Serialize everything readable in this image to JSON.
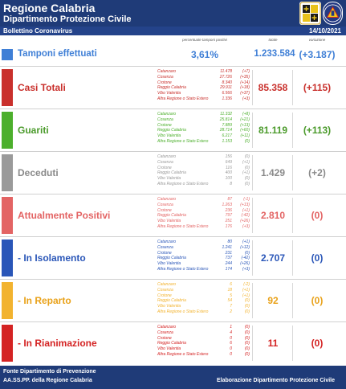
{
  "header": {
    "title": "Regione Calabria",
    "subtitle": "Dipartimento Protezione Civile"
  },
  "subheader": {
    "left": "Bollettino Coronavirus",
    "date": "14/10/2021"
  },
  "columns": {
    "perc": "percentuale tamponi positivi",
    "total": "totale",
    "delta": "variazione"
  },
  "tamponi": {
    "label": "Tamponi effettuati",
    "perc": "3,61%",
    "total": "1.233.584",
    "delta": "(+3.187)",
    "color": "#3f7fd6"
  },
  "sections": [
    {
      "key": "casi",
      "label": "Casi Totali",
      "color": "#c9302c",
      "total": "85.358",
      "delta": "(+115)",
      "rows": [
        {
          "name": "Catanzaro",
          "value": "11.478",
          "delta": "(+7)"
        },
        {
          "name": "Cosenza",
          "value": "27.726",
          "delta": "(+35)"
        },
        {
          "name": "Crotone",
          "value": "8.340",
          "delta": "(+14)"
        },
        {
          "name": "Reggio Calabria",
          "value": "29.911",
          "delta": "(+18)"
        },
        {
          "name": "Vibo Valentia",
          "value": "6.566",
          "delta": "(+37)"
        },
        {
          "name": "Altra Regione o Stato Estero",
          "value": "1.336",
          "delta": "(+3)"
        }
      ]
    },
    {
      "key": "guariti",
      "label": "Guariti",
      "color": "#4caf2c",
      "total": "81.119",
      "delta": "(+113)",
      "rows": [
        {
          "name": "Catanzaro",
          "value": "11.332",
          "delta": "(+8)"
        },
        {
          "name": "Cosenza",
          "value": "25.814",
          "delta": "(+21)"
        },
        {
          "name": "Crotone",
          "value": "7.889",
          "delta": "(+13)"
        },
        {
          "name": "Reggio Calabria",
          "value": "28.714",
          "delta": "(+60)"
        },
        {
          "name": "Vibo Valentia",
          "value": "6.217",
          "delta": "(+11)"
        },
        {
          "name": "Altra Regione o Stato Estero",
          "value": "1.153",
          "delta": "(0)"
        }
      ]
    },
    {
      "key": "deceduti",
      "label": "Deceduti",
      "color": "#9a9a9a",
      "total": "1.429",
      "delta": "(+2)",
      "rows": [
        {
          "name": "Catanzaro",
          "value": "156",
          "delta": "(0)"
        },
        {
          "name": "Cosenza",
          "value": "649",
          "delta": "(+1)"
        },
        {
          "name": "Crotone",
          "value": "116",
          "delta": "(0)"
        },
        {
          "name": "Reggio Calabria",
          "value": "400",
          "delta": "(+1)"
        },
        {
          "name": "Vibo Valentia",
          "value": "100",
          "delta": "(0)"
        },
        {
          "name": "Altra Regione o Stato Estero",
          "value": "8",
          "delta": "(0)"
        }
      ]
    },
    {
      "key": "positivi",
      "label": "Attualmente Positivi",
      "color": "#e36464",
      "total": "2.810",
      "delta": "(0)",
      "rows": [
        {
          "name": "Catanzaro",
          "value": "87",
          "delta": "(-1)"
        },
        {
          "name": "Cosenza",
          "value": "1.263",
          "delta": "(+13)"
        },
        {
          "name": "Crotone",
          "value": "236",
          "delta": "(+1)"
        },
        {
          "name": "Reggio Calabria",
          "value": "797",
          "delta": "(-42)"
        },
        {
          "name": "Vibo Valentia",
          "value": "251",
          "delta": "(+26)"
        },
        {
          "name": "Altra Regione o Stato Estero",
          "value": "176",
          "delta": "(+3)"
        }
      ]
    },
    {
      "key": "isolamento",
      "label": "- In Isolamento",
      "color": "#2a56b8",
      "total": "2.707",
      "delta": "(0)",
      "rows": [
        {
          "name": "Catanzaro",
          "value": "80",
          "delta": "(+1)"
        },
        {
          "name": "Cosenza",
          "value": "1.241",
          "delta": "(+12)"
        },
        {
          "name": "Crotone",
          "value": "231",
          "delta": "(0)"
        },
        {
          "name": "Reggio Calabria",
          "value": "737",
          "delta": "(-42)"
        },
        {
          "name": "Vibo Valentia",
          "value": "244",
          "delta": "(+26)"
        },
        {
          "name": "Altra Regione o Stato Estero",
          "value": "174",
          "delta": "(+3)"
        }
      ]
    },
    {
      "key": "reparto",
      "label": "- In Reparto",
      "color": "#f2b32f",
      "total": "92",
      "delta": "(0)",
      "rows": [
        {
          "name": "Catanzaro",
          "value": "6",
          "delta": "(-2)"
        },
        {
          "name": "Cosenza",
          "value": "18",
          "delta": "(+1)"
        },
        {
          "name": "Crotone",
          "value": "5",
          "delta": "(+1)"
        },
        {
          "name": "Reggio Calabria",
          "value": "54",
          "delta": "(0)"
        },
        {
          "name": "Vibo Valentia",
          "value": "7",
          "delta": "(0)"
        },
        {
          "name": "Altra Regione o Stato Estero",
          "value": "2",
          "delta": "(0)"
        }
      ]
    },
    {
      "key": "rianimazione",
      "label": "- In Rianimazione",
      "color": "#d42323",
      "total": "11",
      "delta": "(0)",
      "rows": [
        {
          "name": "Catanzaro",
          "value": "1",
          "delta": "(0)"
        },
        {
          "name": "Cosenza",
          "value": "4",
          "delta": "(0)"
        },
        {
          "name": "Crotone",
          "value": "0",
          "delta": "(0)"
        },
        {
          "name": "Reggio Calabria",
          "value": "6",
          "delta": "(0)"
        },
        {
          "name": "Vibo Valentia",
          "value": "0",
          "delta": "(0)"
        },
        {
          "name": "Altra Regione o Stato Estero",
          "value": "0",
          "delta": "(0)"
        }
      ]
    }
  ],
  "footer": {
    "line1": "Fonte Dipartimento di Prevenzione",
    "line2": "AA.SS.PP. della Regione Calabria",
    "credit": "Elaborazione Dipartimento Protezione Civile"
  }
}
